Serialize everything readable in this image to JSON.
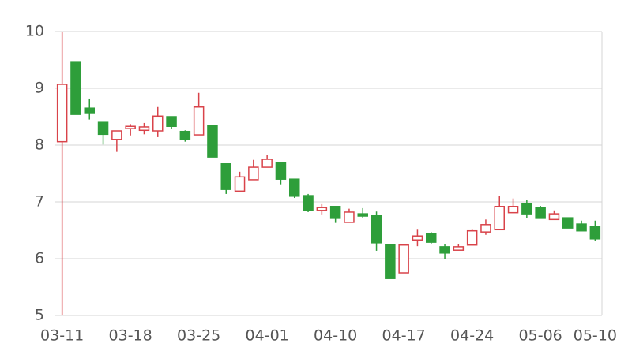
{
  "chart_data": {
    "type": "candlestick",
    "categories": [
      "03-11",
      null,
      null,
      null,
      null,
      "03-18",
      null,
      null,
      null,
      null,
      "03-25",
      null,
      null,
      null,
      null,
      "04-01",
      null,
      null,
      null,
      null,
      "04-10",
      null,
      null,
      null,
      null,
      "04-17",
      null,
      null,
      null,
      null,
      "04-24",
      null,
      null,
      null,
      null,
      "05-06",
      null,
      null,
      null,
      "05-10"
    ],
    "open": [
      8.06,
      9.47,
      8.65,
      8.4,
      8.1,
      8.29,
      8.26,
      8.25,
      8.5,
      8.24,
      8.18,
      8.35,
      7.67,
      7.19,
      7.39,
      7.61,
      7.69,
      7.4,
      7.11,
      6.85,
      6.92,
      6.64,
      6.79,
      6.76,
      6.24,
      5.75,
      6.33,
      6.44,
      6.21,
      6.15,
      6.24,
      6.47,
      6.51,
      6.81,
      6.97,
      6.9,
      6.69,
      6.72,
      6.61,
      6.56
    ],
    "high": [
      10.0,
      9.47,
      8.82,
      8.4,
      8.25,
      8.37,
      8.39,
      8.67,
      8.5,
      8.26,
      8.92,
      8.35,
      7.67,
      7.53,
      7.74,
      7.83,
      7.69,
      7.4,
      7.14,
      6.96,
      6.92,
      6.88,
      6.89,
      6.83,
      6.24,
      6.24,
      6.51,
      6.47,
      6.26,
      6.26,
      6.51,
      6.69,
      7.1,
      7.06,
      7.03,
      6.93,
      6.85,
      6.72,
      6.67,
      6.67
    ],
    "low": [
      5.0,
      8.54,
      8.45,
      8.01,
      7.88,
      8.17,
      8.19,
      8.14,
      8.28,
      8.06,
      8.18,
      7.79,
      7.14,
      7.19,
      7.39,
      7.61,
      7.31,
      7.07,
      6.82,
      6.78,
      6.63,
      6.64,
      6.72,
      6.14,
      5.65,
      5.75,
      6.22,
      6.26,
      5.99,
      6.15,
      6.24,
      6.42,
      6.51,
      6.81,
      6.71,
      6.71,
      6.69,
      6.54,
      6.49,
      6.32
    ],
    "close": [
      9.07,
      8.54,
      8.57,
      8.19,
      8.25,
      8.33,
      8.32,
      8.51,
      8.33,
      8.1,
      8.67,
      7.79,
      7.22,
      7.44,
      7.61,
      7.75,
      7.4,
      7.1,
      6.85,
      6.9,
      6.71,
      6.82,
      6.75,
      6.28,
      5.65,
      6.24,
      6.4,
      6.29,
      6.1,
      6.21,
      6.49,
      6.6,
      6.92,
      6.92,
      6.79,
      6.71,
      6.79,
      6.54,
      6.49,
      6.35
    ],
    "up_color": "#d9434a",
    "down_color": "#2e9e3a",
    "ylim": [
      5,
      10
    ],
    "yticks": [
      5,
      6,
      7,
      8,
      9,
      10
    ],
    "grid": true
  }
}
